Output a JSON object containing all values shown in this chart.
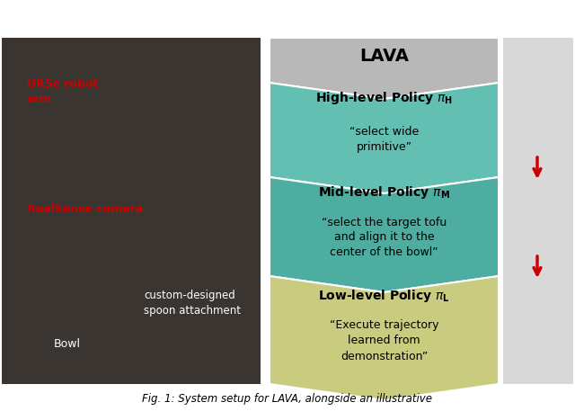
{
  "title": "LAVA",
  "background_color": "#ffffff",
  "caption": "Fig. 1: System setup for LAVA, alongside an illustrative",
  "chevron_header_color": "#b8b8b8",
  "chevron_1_color": "#62bfb2",
  "chevron_2_color": "#4dada0",
  "chevron_3_color": "#c9cb7e",
  "chevron_outline_color": "#5a8a84",
  "policy_bold_1": "High-level Policy ",
  "policy_pi_1": "$\\pi_H$",
  "policy_bold_2": "Mid-level Policy ",
  "policy_pi_2": "$\\pi_M$",
  "policy_bold_3": "Low-level Policy ",
  "policy_pi_3": "$\\pi_L$",
  "policy_desc_1": "“select wide\nprimitive”",
  "policy_desc_2": "“select the target tofu\nand align it to the\ncenter of the bowl”",
  "policy_desc_3": "“Execute trajectory\nlearned from\ndemonstration”",
  "robot_arm_label": "UR5e robot\narm",
  "camera_label": "RealSense camera",
  "bowl_label": "Bowl",
  "spoon_label": "custom-designed\nspoon attachment",
  "left_photo_color": "#3a3530",
  "right_photo_color": "#d8d8d8",
  "arrow_color": "#cc0000",
  "label_red": "#cc0000",
  "label_white": "#ffffff",
  "figsize": [
    6.4,
    4.57
  ],
  "dpi": 100
}
